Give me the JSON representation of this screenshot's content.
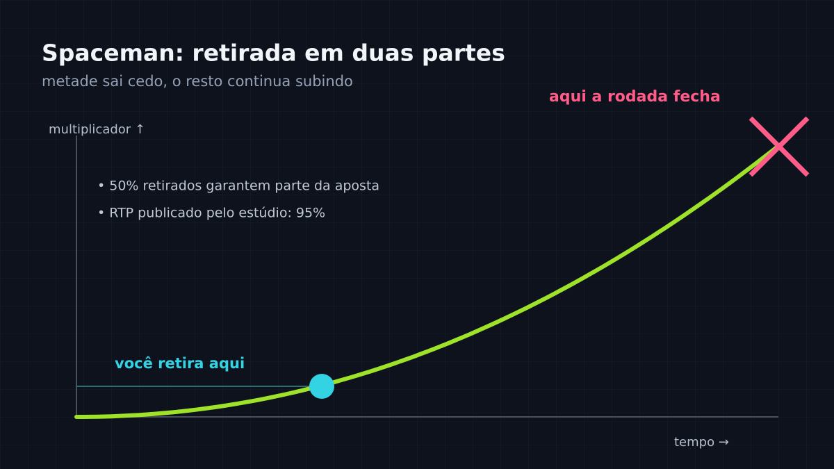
{
  "header": {
    "title": "Spaceman: retirada em duas partes",
    "subtitle": "metade sai cedo, o resto continua subindo"
  },
  "axes": {
    "y_label": "multiplicador ↑",
    "x_label": "tempo →"
  },
  "notes": [
    "• 50% retirados garantem parte da aposta",
    "• RTP publicado pelo estúdio: 95%"
  ],
  "annotations": {
    "cashout": "você retira aqui",
    "crash": "aqui a rodada fecha"
  }
}
